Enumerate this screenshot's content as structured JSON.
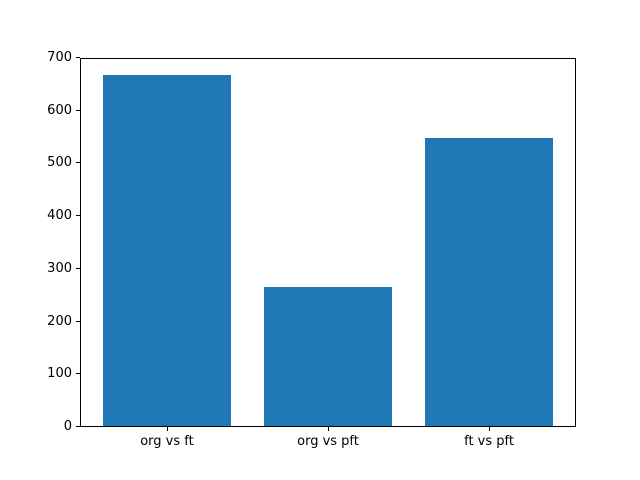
{
  "figure": {
    "background": "#ffffff",
    "plot_background": "#ffffff",
    "frame_color": "#000000",
    "text_color": "#000000"
  },
  "chart_data": {
    "type": "bar",
    "categories": [
      "org vs ft",
      "org vs pft",
      "ft vs pft"
    ],
    "values": [
      670,
      266,
      550
    ],
    "title": "",
    "xlabel": "",
    "ylabel": "",
    "ylim": [
      0,
      700
    ],
    "yticks": [
      0,
      100,
      200,
      300,
      400,
      500,
      600,
      700
    ],
    "bar_color": "#1f77b4",
    "bar_width_fraction": 0.8,
    "grid": false,
    "legend": null
  }
}
